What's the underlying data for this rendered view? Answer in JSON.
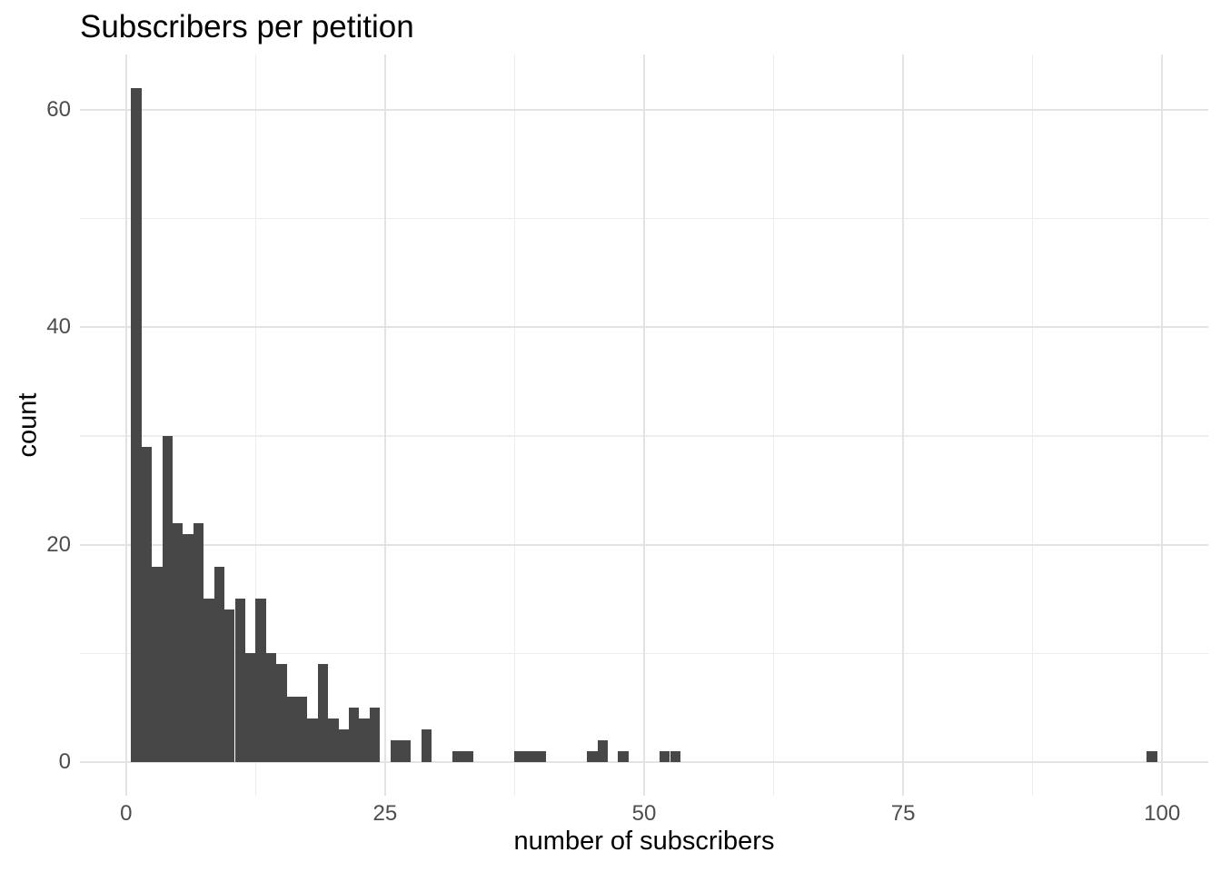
{
  "title": "Subscribers per petition",
  "chart_data": {
    "type": "bar",
    "subtype": "histogram",
    "title": "Subscribers per petition",
    "xlabel": "number of subscribers",
    "ylabel": "count",
    "binwidth": 1,
    "bins": [
      {
        "x": 1,
        "count": 62
      },
      {
        "x": 2,
        "count": 29
      },
      {
        "x": 3,
        "count": 18
      },
      {
        "x": 4,
        "count": 30
      },
      {
        "x": 5,
        "count": 22
      },
      {
        "x": 6,
        "count": 21
      },
      {
        "x": 7,
        "count": 22
      },
      {
        "x": 8,
        "count": 15
      },
      {
        "x": 9,
        "count": 18
      },
      {
        "x": 10,
        "count": 14
      },
      {
        "x": 11,
        "count": 15
      },
      {
        "x": 12,
        "count": 10
      },
      {
        "x": 13,
        "count": 15
      },
      {
        "x": 14,
        "count": 10
      },
      {
        "x": 15,
        "count": 9
      },
      {
        "x": 16,
        "count": 6
      },
      {
        "x": 17,
        "count": 6
      },
      {
        "x": 18,
        "count": 4
      },
      {
        "x": 19,
        "count": 9
      },
      {
        "x": 20,
        "count": 4
      },
      {
        "x": 21,
        "count": 3
      },
      {
        "x": 22,
        "count": 5
      },
      {
        "x": 23,
        "count": 4
      },
      {
        "x": 24,
        "count": 5
      },
      {
        "x": 26,
        "count": 2
      },
      {
        "x": 27,
        "count": 2
      },
      {
        "x": 29,
        "count": 3
      },
      {
        "x": 32,
        "count": 1
      },
      {
        "x": 33,
        "count": 1
      },
      {
        "x": 38,
        "count": 1
      },
      {
        "x": 39,
        "count": 1
      },
      {
        "x": 40,
        "count": 1
      },
      {
        "x": 45,
        "count": 1
      },
      {
        "x": 46,
        "count": 2
      },
      {
        "x": 48,
        "count": 1
      },
      {
        "x": 52,
        "count": 1
      },
      {
        "x": 53,
        "count": 1
      },
      {
        "x": 99,
        "count": 1
      }
    ],
    "x_ticks": [
      0,
      25,
      50,
      75,
      100
    ],
    "x_minor_ticks": [
      12.5,
      37.5,
      62.5,
      87.5
    ],
    "y_ticks": [
      0,
      20,
      40,
      60
    ],
    "y_minor_ticks": [
      10,
      30,
      50
    ],
    "xlim": [
      -4.45,
      104.45
    ],
    "ylim": [
      -3.1,
      65.1
    ],
    "grid": true,
    "legend_position": "none",
    "bar_color": "#474747",
    "grid_major_color": "#e3e3e3",
    "grid_minor_color": "#ededed",
    "tick_label_color": "#4d4d4d",
    "text_color": "#000000",
    "background_color": "#ffffff"
  }
}
